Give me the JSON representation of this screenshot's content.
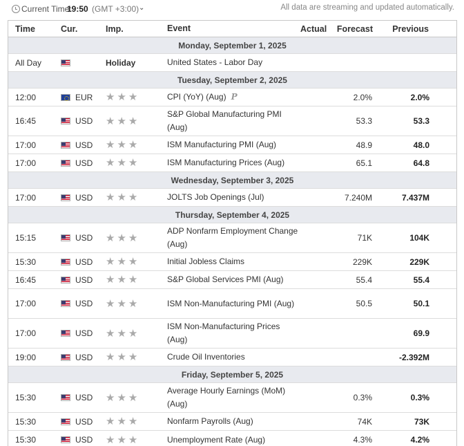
{
  "topbar": {
    "current_time_label": "Current Time:",
    "current_time": "19:50",
    "timezone": "(GMT +3:00)",
    "notice": "All data are streaming and updated automatically.",
    "icons": {
      "clock": "clock-icon",
      "chevron": "chevron-down-icon"
    }
  },
  "columns": {
    "time": "Time",
    "currency": "Cur.",
    "importance": "Imp.",
    "event": "Event",
    "actual": "Actual",
    "forecast": "Forecast",
    "previous": "Previous"
  },
  "days": [
    {
      "label": "Monday, September 1, 2025",
      "events": [
        {
          "time": "All Day",
          "flag": "us",
          "currency": "",
          "importance": "holiday",
          "importance_label": "Holiday",
          "event": "United States - Labor Day",
          "actual": "",
          "forecast": "",
          "previous": ""
        }
      ]
    },
    {
      "label": "Tuesday, September 2, 2025",
      "events": [
        {
          "time": "12:00",
          "flag": "eu",
          "currency": "EUR",
          "importance": 3,
          "event": "CPI (YoY) (Aug)",
          "preliminary": "P",
          "actual": "",
          "forecast": "2.0%",
          "previous": "2.0%"
        },
        {
          "time": "16:45",
          "flag": "us",
          "currency": "USD",
          "importance": 3,
          "event": "S&P Global Manufacturing PMI (Aug)",
          "actual": "",
          "forecast": "53.3",
          "previous": "53.3",
          "tall": true
        },
        {
          "time": "17:00",
          "flag": "us",
          "currency": "USD",
          "importance": 3,
          "event": "ISM Manufacturing PMI (Aug)",
          "actual": "",
          "forecast": "48.9",
          "previous": "48.0"
        },
        {
          "time": "17:00",
          "flag": "us",
          "currency": "USD",
          "importance": 3,
          "event": "ISM Manufacturing Prices (Aug)",
          "actual": "",
          "forecast": "65.1",
          "previous": "64.8"
        }
      ]
    },
    {
      "label": "Wednesday, September 3, 2025",
      "events": [
        {
          "time": "17:00",
          "flag": "us",
          "currency": "USD",
          "importance": 3,
          "event": "JOLTS Job Openings (Jul)",
          "actual": "",
          "forecast": "7.240M",
          "previous": "7.437M"
        }
      ]
    },
    {
      "label": "Thursday, September 4, 2025",
      "events": [
        {
          "time": "15:15",
          "flag": "us",
          "currency": "USD",
          "importance": 3,
          "event": "ADP Nonfarm Employment Change (Aug)",
          "actual": "",
          "forecast": "71K",
          "previous": "104K",
          "tall": true
        },
        {
          "time": "15:30",
          "flag": "us",
          "currency": "USD",
          "importance": 3,
          "event": "Initial Jobless Claims",
          "actual": "",
          "forecast": "229K",
          "previous": "229K"
        },
        {
          "time": "16:45",
          "flag": "us",
          "currency": "USD",
          "importance": 3,
          "event": "S&P Global Services PMI (Aug)",
          "actual": "",
          "forecast": "55.4",
          "previous": "55.4"
        },
        {
          "time": "17:00",
          "flag": "us",
          "currency": "USD",
          "importance": 3,
          "event": "ISM Non-Manufacturing PMI (Aug)",
          "actual": "",
          "forecast": "50.5",
          "previous": "50.1",
          "tall": true
        },
        {
          "time": "17:00",
          "flag": "us",
          "currency": "USD",
          "importance": 3,
          "event": "ISM Non-Manufacturing Prices (Aug)",
          "actual": "",
          "forecast": "",
          "previous": "69.9",
          "tall": true
        },
        {
          "time": "19:00",
          "flag": "us",
          "currency": "USD",
          "importance": 3,
          "event": "Crude Oil Inventories",
          "actual": "",
          "forecast": "",
          "previous": "-2.392M"
        }
      ]
    },
    {
      "label": "Friday, September 5, 2025",
      "events": [
        {
          "time": "15:30",
          "flag": "us",
          "currency": "USD",
          "importance": 3,
          "event": "Average Hourly Earnings (MoM) (Aug)",
          "actual": "",
          "forecast": "0.3%",
          "previous": "0.3%",
          "tall": true
        },
        {
          "time": "15:30",
          "flag": "us",
          "currency": "USD",
          "importance": 3,
          "event": "Nonfarm Payrolls (Aug)",
          "actual": "",
          "forecast": "74K",
          "previous": "73K"
        },
        {
          "time": "15:30",
          "flag": "us",
          "currency": "USD",
          "importance": 3,
          "event": "Unemployment Rate (Aug)",
          "actual": "",
          "forecast": "4.3%",
          "previous": "4.2%"
        }
      ]
    }
  ]
}
